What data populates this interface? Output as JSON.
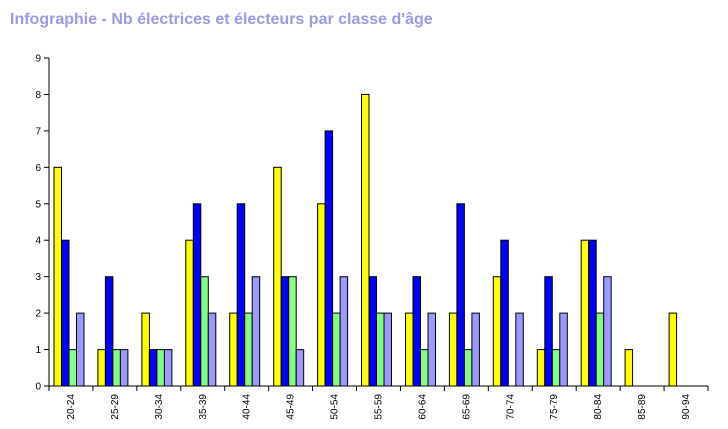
{
  "page": {
    "title": "Infographie - Nb électrices et électeurs par classe d'âge"
  },
  "chart_data": {
    "type": "bar",
    "title": "Infographie - Nb électrices et électeurs par classe d'âge",
    "xlabel": "",
    "ylabel": "",
    "ylim": [
      0,
      9
    ],
    "yticks": [
      "0",
      "1",
      "2",
      "3",
      "4",
      "5",
      "6",
      "7",
      "8",
      "9"
    ],
    "grid": false,
    "legend": "none",
    "categories": [
      "20-24",
      "25-29",
      "30-34",
      "35-39",
      "40-44",
      "45-49",
      "50-54",
      "55-59",
      "60-64",
      "65-69",
      "70-74",
      "75-79",
      "80-84",
      "85-89",
      "90-94"
    ],
    "series": [
      {
        "color": "#ffff00",
        "values": [
          6,
          1,
          2,
          4,
          2,
          6,
          5,
          8,
          2,
          2,
          3,
          1,
          4,
          1,
          2
        ]
      },
      {
        "color": "#0000ff",
        "values": [
          4,
          3,
          1,
          5,
          5,
          3,
          7,
          3,
          3,
          5,
          4,
          3,
          4,
          0,
          0
        ]
      },
      {
        "color": "#80ff80",
        "values": [
          1,
          1,
          1,
          3,
          2,
          3,
          2,
          2,
          1,
          1,
          0,
          1,
          2,
          0,
          0
        ]
      },
      {
        "color": "#9999ff",
        "values": [
          2,
          1,
          1,
          2,
          3,
          1,
          3,
          2,
          2,
          2,
          2,
          2,
          3,
          0,
          0
        ]
      }
    ]
  }
}
